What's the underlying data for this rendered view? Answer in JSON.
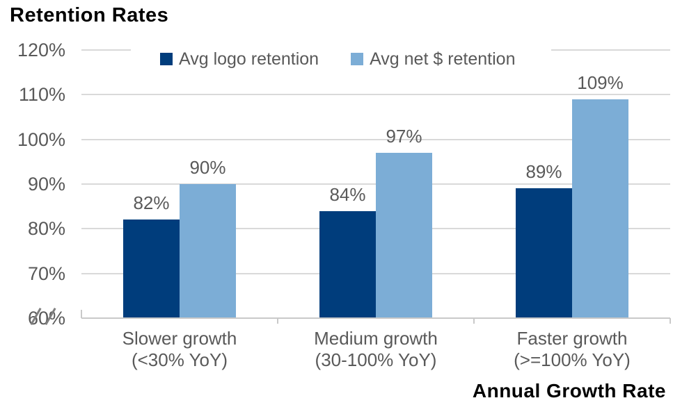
{
  "header": {
    "title": "Retention Rates"
  },
  "chart_data": {
    "type": "bar",
    "title": "Retention Rates",
    "xlabel": "Annual Growth Rate",
    "ylabel": "",
    "grid": true,
    "legend_position": "top",
    "categories": [
      {
        "line1": "Slower growth",
        "line2": "(<30% YoY)"
      },
      {
        "line1": "Medium growth",
        "line2": "(30-100% YoY)"
      },
      {
        "line1": "Faster growth",
        "line2": "(>=100% YoY)"
      }
    ],
    "series": [
      {
        "name": "Avg logo retention",
        "color": "#003d7c",
        "values": [
          82,
          84,
          89
        ],
        "labels": [
          "82%",
          "84%",
          "89%"
        ]
      },
      {
        "name": "Avg net $ retention",
        "color": "#7cadd6",
        "values": [
          90,
          97,
          109
        ],
        "labels": [
          "90%",
          "97%",
          "109%"
        ]
      }
    ],
    "y_axis": {
      "min": 60,
      "max": 120,
      "step": 10,
      "tick_labels": [
        "120%",
        "110%",
        "100%",
        "90%",
        "80%",
        "70%",
        "60%"
      ],
      "axis_break_at_label": "60%"
    }
  },
  "colors": {
    "bar_dark": "#003d7c",
    "bar_light": "#7cadd6",
    "text_gray": "#595959",
    "gridline": "#d9d9d9",
    "axisline": "#c9c9c9",
    "title_black": "#000000"
  }
}
